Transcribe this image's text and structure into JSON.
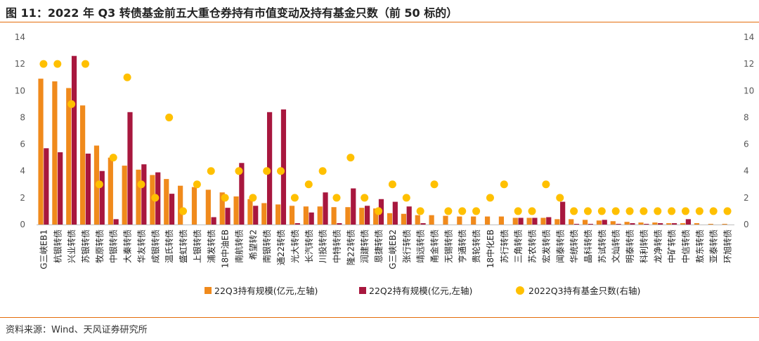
{
  "figure": {
    "title": "图 11：2022 年 Q3 转债基金前五大重仓券持有市值变动及持有基金只数（前 50 标的）",
    "source": "资料来源：Wind、天风证券研究所"
  },
  "colors": {
    "q3": "#F08A1C",
    "q2": "#A8173E",
    "count": "#FFC000",
    "rule": "#E46C0A"
  },
  "chart_data": {
    "type": "bar",
    "categories": [
      "G三峡EB1",
      "杭银转债",
      "兴业转债",
      "苏银转债",
      "牧原转债",
      "中银转债",
      "大秦转债",
      "华友转债",
      "成银转债",
      "温氏转债",
      "盛虹转债",
      "上银转债",
      "浦发转债",
      "18中油EB",
      "南航转债",
      "希望转2",
      "南银转债",
      "通22转债",
      "光大转债",
      "长汽转债",
      "川投转债",
      "中特转债",
      "隆22转债",
      "润建转债",
      "恩捷转债",
      "G三峡EB2",
      "张行转债",
      "靖远转债",
      "甬金转债",
      "无锡转债",
      "亨通转债",
      "贵轮转债",
      "18中化EB",
      "苏行转债",
      "三角转债",
      "苏农转债",
      "宏发转债",
      "闻泰转债",
      "华统转债",
      "晶科转债",
      "苏试转债",
      "文灿转债",
      "明泰转债",
      "科利转债",
      "龙净转债",
      "中矿转债",
      "中信转债",
      "敖东转债",
      "亚泰转债",
      "环旭转债"
    ],
    "series": [
      {
        "name": "22Q3持有规模(亿元,左轴)",
        "type": "bar",
        "axis": "left",
        "values": [
          10.9,
          10.7,
          10.2,
          8.9,
          5.9,
          5.0,
          4.4,
          4.1,
          3.7,
          3.4,
          2.9,
          2.8,
          2.6,
          2.4,
          2.1,
          1.9,
          1.6,
          1.5,
          1.4,
          1.35,
          1.35,
          1.3,
          1.3,
          1.25,
          1.2,
          0.85,
          0.8,
          0.7,
          0.7,
          0.65,
          0.6,
          0.6,
          0.6,
          0.6,
          0.5,
          0.5,
          0.5,
          0.4,
          0.4,
          0.35,
          0.3,
          0.25,
          0.2,
          0.15,
          0.15,
          0.1,
          0.1,
          0.1,
          0.05,
          0.05
        ]
      },
      {
        "name": "22Q2持有规模(亿元,左轴)",
        "type": "bar",
        "axis": "left",
        "values": [
          5.7,
          5.4,
          12.6,
          5.3,
          4.0,
          0.4,
          8.4,
          4.5,
          3.9,
          2.3,
          0,
          0,
          0.55,
          1.25,
          4.6,
          1.4,
          8.4,
          8.6,
          0.1,
          0.9,
          2.4,
          0.1,
          2.7,
          1.4,
          1.9,
          1.7,
          1.35,
          0.1,
          0,
          0,
          0,
          0,
          0,
          0,
          0.5,
          0.5,
          0.55,
          1.7,
          0.05,
          0.05,
          0.35,
          0.05,
          0.1,
          0.05,
          0.1,
          0.1,
          0.4,
          0,
          0,
          0
        ]
      },
      {
        "name": "2022Q3持有基金只数(右轴)",
        "type": "scatter",
        "axis": "right",
        "values": [
          12,
          12,
          9,
          12,
          3,
          5,
          11,
          3,
          2,
          8,
          1,
          3,
          4,
          2,
          4,
          2,
          4,
          4,
          2,
          3,
          4,
          2,
          5,
          2,
          1,
          3,
          2,
          1,
          3,
          1,
          1,
          1,
          2,
          3,
          1,
          1,
          3,
          2,
          1,
          1,
          1,
          1,
          1,
          1,
          1,
          1,
          1,
          1,
          1,
          1
        ]
      }
    ],
    "y_left": {
      "min": 0,
      "max": 14,
      "ticks": [
        "0",
        "2",
        "4",
        "6",
        "8",
        "10",
        "12",
        "14"
      ]
    },
    "y_right": {
      "min": 0,
      "max": 14,
      "ticks": [
        "0",
        "2",
        "4",
        "6",
        "8",
        "10",
        "12",
        "14"
      ]
    },
    "legend_position": "bottom",
    "grid": false
  }
}
